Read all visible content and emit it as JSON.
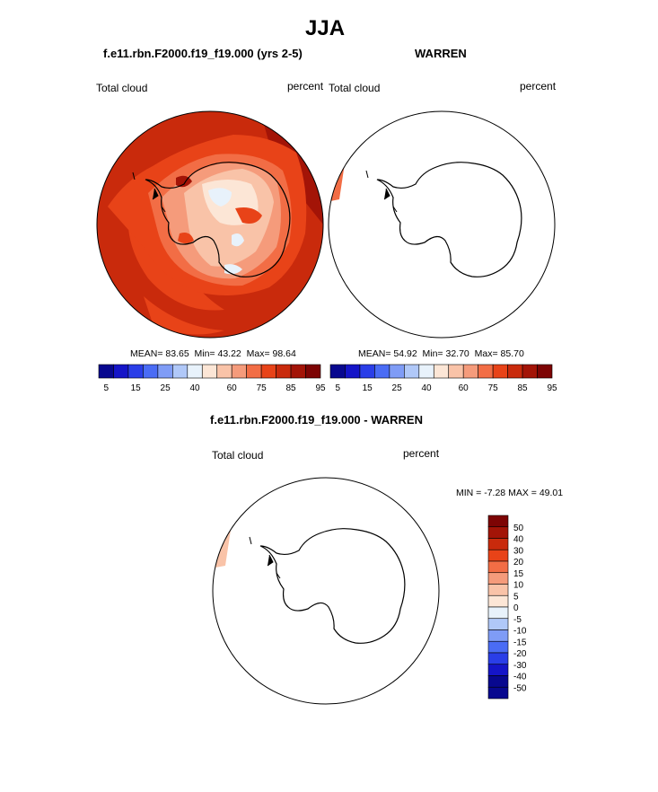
{
  "page": {
    "title": "JJA"
  },
  "chart_data": [
    {
      "type": "heatmap",
      "title": "f.e11.rbn.F2000.f19_f19.000 (yrs 2-5)",
      "left_label": "Total cloud",
      "right_label": "percent",
      "stats": {
        "mean_label": "MEAN=",
        "mean": "83.65",
        "min_label": "Min=",
        "min": "43.22",
        "max_label": "Max=",
        "max": "98.64"
      },
      "colorbar": {
        "colors": [
          "#08088f",
          "#1515c8",
          "#2a3ee8",
          "#4a6cf5",
          "#7f9cf6",
          "#b0c8f8",
          "#e8f2fb",
          "#fce6d6",
          "#f9c3a8",
          "#f59b7b",
          "#f26d45",
          "#e84318",
          "#c92a0c",
          "#a31407",
          "#7d0404"
        ],
        "tick_labels": [
          "5",
          "15",
          "25",
          "40",
          "60",
          "75",
          "85",
          "95"
        ]
      }
    },
    {
      "type": "heatmap",
      "title": "WARREN",
      "left_label": "Total cloud",
      "right_label": "percent",
      "stats": {
        "mean_label": "MEAN=",
        "mean": "54.92",
        "min_label": "Min=",
        "min": "32.70",
        "max_label": "Max=",
        "max": "85.70"
      },
      "colorbar": {
        "colors": [
          "#08088f",
          "#1515c8",
          "#2a3ee8",
          "#4a6cf5",
          "#7f9cf6",
          "#b0c8f8",
          "#e8f2fb",
          "#fce6d6",
          "#f9c3a8",
          "#f59b7b",
          "#f26d45",
          "#e84318",
          "#c92a0c",
          "#a31407",
          "#7d0404"
        ],
        "tick_labels": [
          "5",
          "15",
          "25",
          "40",
          "60",
          "75",
          "85",
          "95"
        ]
      }
    },
    {
      "type": "heatmap",
      "title": "f.e11.rbn.F2000.f19_f19.000 - WARREN",
      "left_label": "Total cloud",
      "right_label": "percent",
      "stats": {
        "min_label": "MIN =",
        "min": "-7.28",
        "max_label": "MAX =",
        "max": "49.01"
      },
      "colorbar": {
        "colors": [
          "#7d0404",
          "#a31407",
          "#c92a0c",
          "#e84318",
          "#f26d45",
          "#f59b7b",
          "#f9c3a8",
          "#fce6d6",
          "#e8f2fb",
          "#b0c8f8",
          "#7f9cf6",
          "#4a6cf5",
          "#2a3ee8",
          "#1515c8",
          "#08088f"
        ],
        "tick_labels": [
          "50",
          "40",
          "30",
          "20",
          "15",
          "10",
          "5",
          "0",
          "-5",
          "-10",
          "-15",
          "-20",
          "-30",
          "-40",
          "-50"
        ]
      }
    }
  ]
}
